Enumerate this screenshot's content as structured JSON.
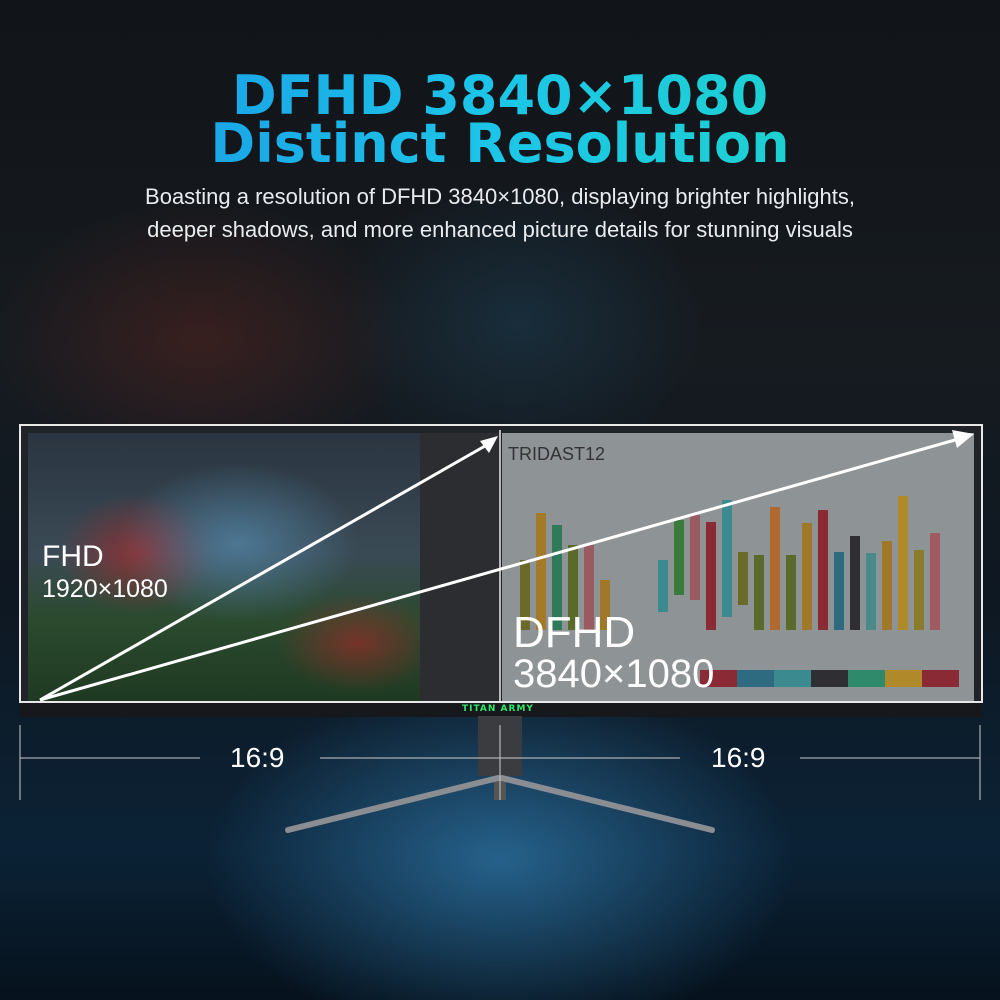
{
  "headline": {
    "line1": "DFHD 3840×1080",
    "line2": "Distinct Resolution"
  },
  "subtitle": {
    "line1": "Boasting a resolution of DFHD 3840×1080, displaying brighter highlights,",
    "line2": "deeper shadows, and more enhanced picture details for stunning visuals"
  },
  "left_screen": {
    "label": "FHD",
    "resolution": "1920×1080"
  },
  "right_screen": {
    "label": "DFHD",
    "resolution": "3840×1080",
    "screen_title": "TRIDAST12"
  },
  "brand": "TITAN ARMY",
  "ratios": {
    "left": "16:9",
    "right": "16:9"
  },
  "colors": {
    "title_start": "#1a8fe8",
    "title_end": "#1ed9c2",
    "brand": "#2ee86a"
  }
}
